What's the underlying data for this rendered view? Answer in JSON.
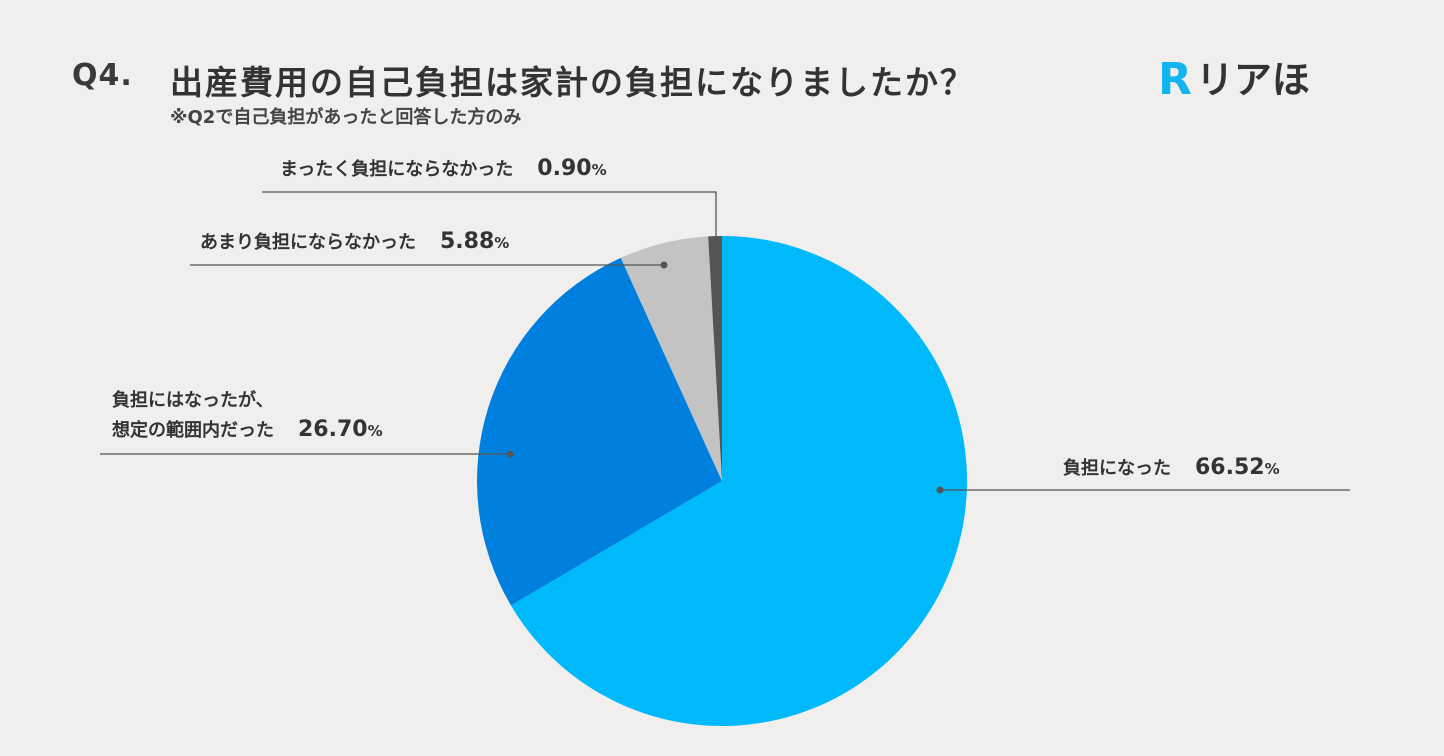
{
  "header": {
    "question_number": "Q4.",
    "title": "出産費用の自己負担は家計の負担になりましたか？",
    "subtitle": "※Q2で自己負担があったと回答した方のみ"
  },
  "logo": {
    "mark": "R",
    "text": "リアほ",
    "color": "#13b4ef"
  },
  "chart_data": {
    "type": "pie",
    "start": "12 o'clock",
    "direction": "clockwise",
    "slices": [
      {
        "label": "負担になった",
        "label_lines": [
          "負担になった"
        ],
        "value": 66.52,
        "value_text": "66.52",
        "unit": "%",
        "color": "#00b9fb"
      },
      {
        "label": "負担にはなったが、想定の範囲内だった",
        "label_lines": [
          "負担にはなったが、",
          "想定の範囲内だった"
        ],
        "value": 26.7,
        "value_text": "26.70",
        "unit": "%",
        "color": "#0080de"
      },
      {
        "label": "あまり負担にならなかった",
        "label_lines": [
          "あまり負担にならなかった"
        ],
        "value": 5.88,
        "value_text": "5.88",
        "unit": "%",
        "color": "#c3c3c3"
      },
      {
        "label": "まったく負担にならなかった",
        "label_lines": [
          "まったく負担にならなかった"
        ],
        "value": 0.9,
        "value_text": "0.90",
        "unit": "%",
        "color": "#555555"
      }
    ]
  }
}
